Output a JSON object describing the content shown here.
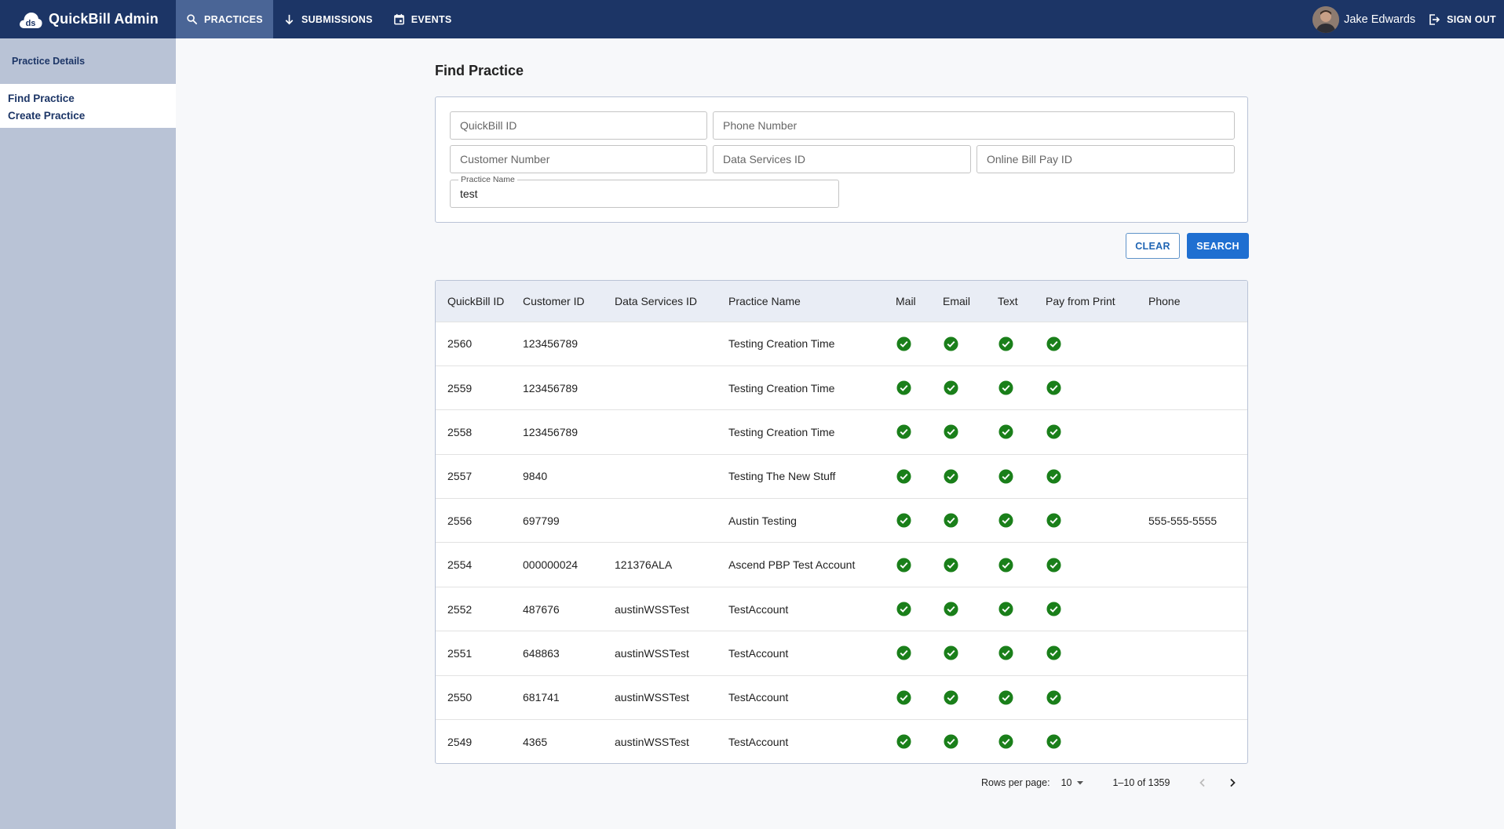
{
  "app": {
    "title": "QuickBill Admin",
    "logo_icon": "ds-cloud-logo-icon"
  },
  "nav": {
    "items": [
      {
        "label": "PRACTICES",
        "icon": "search-icon",
        "active": true
      },
      {
        "label": "SUBMISSIONS",
        "icon": "arrow-down-icon",
        "active": false
      },
      {
        "label": "EVENTS",
        "icon": "calendar-icon",
        "active": false
      }
    ]
  },
  "user": {
    "name": "Jake Edwards",
    "signout_label": "SIGN OUT"
  },
  "sidebar": {
    "header": "Practice Details",
    "links": [
      {
        "label": "Find Practice"
      },
      {
        "label": "Create Practice"
      }
    ]
  },
  "page": {
    "title": "Find Practice"
  },
  "search": {
    "quickbill_id": {
      "placeholder": "QuickBill ID",
      "value": ""
    },
    "phone_number": {
      "placeholder": "Phone Number",
      "value": ""
    },
    "customer_number": {
      "placeholder": "Customer Number",
      "value": ""
    },
    "data_services_id": {
      "placeholder": "Data Services ID",
      "value": ""
    },
    "online_bill_pay_id": {
      "placeholder": "Online Bill Pay ID",
      "value": ""
    },
    "practice_name": {
      "label": "Practice Name",
      "value": "test"
    },
    "clear_label": "CLEAR",
    "search_label": "SEARCH"
  },
  "table": {
    "columns": [
      "QuickBill ID",
      "Customer ID",
      "Data Services ID",
      "Practice Name",
      "Mail",
      "Email",
      "Text",
      "Pay from Print",
      "Phone"
    ],
    "check_color": "#1a7f1a",
    "rows": [
      {
        "quickbill_id": "2560",
        "customer_id": "123456789",
        "data_services_id": "",
        "practice_name": "Testing Creation Time",
        "mail": true,
        "email": true,
        "text": true,
        "pay_from_print": true,
        "phone": ""
      },
      {
        "quickbill_id": "2559",
        "customer_id": "123456789",
        "data_services_id": "",
        "practice_name": "Testing Creation Time",
        "mail": true,
        "email": true,
        "text": true,
        "pay_from_print": true,
        "phone": ""
      },
      {
        "quickbill_id": "2558",
        "customer_id": "123456789",
        "data_services_id": "",
        "practice_name": "Testing Creation Time",
        "mail": true,
        "email": true,
        "text": true,
        "pay_from_print": true,
        "phone": ""
      },
      {
        "quickbill_id": "2557",
        "customer_id": "9840",
        "data_services_id": "",
        "practice_name": "Testing The New Stuff",
        "mail": true,
        "email": true,
        "text": true,
        "pay_from_print": true,
        "phone": ""
      },
      {
        "quickbill_id": "2556",
        "customer_id": "697799",
        "data_services_id": "",
        "practice_name": "Austin Testing",
        "mail": true,
        "email": true,
        "text": true,
        "pay_from_print": true,
        "phone": "555-555-5555"
      },
      {
        "quickbill_id": "2554",
        "customer_id": "000000024",
        "data_services_id": "121376ALA",
        "practice_name": "Ascend PBP Test Account",
        "mail": true,
        "email": true,
        "text": true,
        "pay_from_print": true,
        "phone": ""
      },
      {
        "quickbill_id": "2552",
        "customer_id": "487676",
        "data_services_id": "austinWSSTest",
        "practice_name": "TestAccount",
        "mail": true,
        "email": true,
        "text": true,
        "pay_from_print": true,
        "phone": ""
      },
      {
        "quickbill_id": "2551",
        "customer_id": "648863",
        "data_services_id": "austinWSSTest",
        "practice_name": "TestAccount",
        "mail": true,
        "email": true,
        "text": true,
        "pay_from_print": true,
        "phone": ""
      },
      {
        "quickbill_id": "2550",
        "customer_id": "681741",
        "data_services_id": "austinWSSTest",
        "practice_name": "TestAccount",
        "mail": true,
        "email": true,
        "text": true,
        "pay_from_print": true,
        "phone": ""
      },
      {
        "quickbill_id": "2549",
        "customer_id": "4365",
        "data_services_id": "austinWSSTest",
        "practice_name": "TestAccount",
        "mail": true,
        "email": true,
        "text": true,
        "pay_from_print": true,
        "phone": ""
      }
    ]
  },
  "pagination": {
    "rows_per_page_label": "Rows per page:",
    "rows_per_page": "10",
    "range": "1–10 of 1359"
  }
}
